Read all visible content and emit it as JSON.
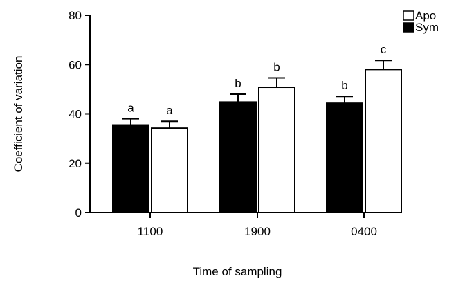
{
  "chart_data": {
    "type": "bar",
    "title": "",
    "xlabel": "Time of sampling",
    "ylabel": "Coefficient of variation",
    "ylim": [
      0,
      80
    ],
    "yticks": [
      "0",
      "20",
      "40",
      "60",
      "80"
    ],
    "categories": [
      "1100",
      "1900",
      "0400"
    ],
    "series": [
      {
        "name": "Sym",
        "color": "#000000",
        "values": [
          35.5,
          44.8,
          44.3
        ],
        "errors": [
          2.5,
          3.2,
          2.8
        ],
        "letters": [
          "a",
          "b",
          "b"
        ]
      },
      {
        "name": "Apo",
        "color": "#ffffff",
        "values": [
          34.2,
          50.8,
          58.0
        ],
        "errors": [
          2.8,
          3.8,
          3.7
        ],
        "letters": [
          "a",
          "b",
          "c"
        ]
      }
    ],
    "legend": {
      "position": "top-right",
      "order": [
        "Apo",
        "Sym"
      ]
    },
    "grid": false
  }
}
